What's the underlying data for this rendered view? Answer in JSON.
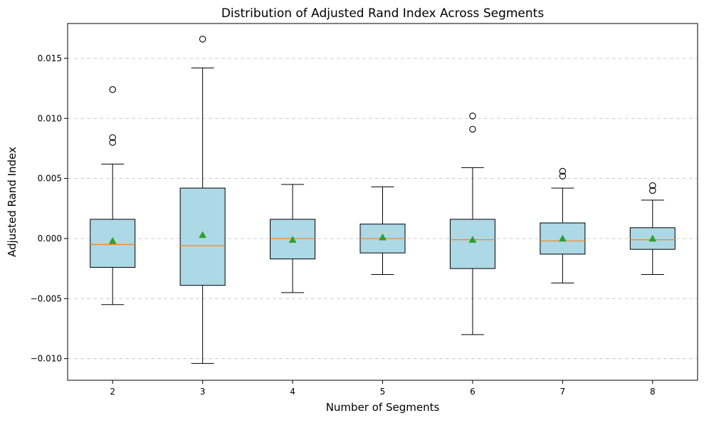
{
  "chart_data": {
    "type": "box",
    "title": "Distribution of Adjusted Rand Index Across Segments",
    "xlabel": "Number of Segments",
    "ylabel": "Adjusted Rand Index",
    "ylim": [
      -0.0118,
      0.0179
    ],
    "yticks": [
      -0.01,
      -0.005,
      0.0,
      0.005,
      0.01,
      0.015
    ],
    "ytick_labels": [
      "−0.010",
      "−0.005",
      "0.000",
      "0.005",
      "0.010",
      "0.015"
    ],
    "grid": {
      "axis": "y",
      "style": "dashed"
    },
    "colors": {
      "box_fill": "#add8e6",
      "box_edge": "#000000",
      "median": "#ff7f0e",
      "mean_marker": "#2ca02c",
      "grid": "#c8c8c8"
    },
    "categories": [
      "2",
      "3",
      "4",
      "5",
      "6",
      "7",
      "8"
    ],
    "boxes": [
      {
        "category": "2",
        "whisker_low": -0.0055,
        "q1": -0.0024,
        "median": -0.0005,
        "q3": 0.0016,
        "whisker_high": 0.0062,
        "mean": -0.0002,
        "outliers": [
          0.008,
          0.0084,
          0.0124
        ]
      },
      {
        "category": "3",
        "whisker_low": -0.0104,
        "q1": -0.0039,
        "median": -0.0006,
        "q3": 0.0042,
        "whisker_high": 0.0142,
        "mean": 0.0003,
        "outliers": [
          0.0166
        ]
      },
      {
        "category": "4",
        "whisker_low": -0.0045,
        "q1": -0.0017,
        "median": 0.0,
        "q3": 0.0016,
        "whisker_high": 0.0045,
        "mean": -0.0001,
        "outliers": []
      },
      {
        "category": "5",
        "whisker_low": -0.003,
        "q1": -0.0012,
        "median": 0.0,
        "q3": 0.0012,
        "whisker_high": 0.0043,
        "mean": 0.0001,
        "outliers": []
      },
      {
        "category": "6",
        "whisker_low": -0.008,
        "q1": -0.0025,
        "median": -0.0001,
        "q3": 0.0016,
        "whisker_high": 0.0059,
        "mean": -0.0001,
        "outliers": [
          0.0091,
          0.0102
        ]
      },
      {
        "category": "7",
        "whisker_low": -0.0037,
        "q1": -0.0013,
        "median": -0.0002,
        "q3": 0.0013,
        "whisker_high": 0.0042,
        "mean": 0.0,
        "outliers": [
          0.0052,
          0.0056
        ]
      },
      {
        "category": "8",
        "whisker_low": -0.003,
        "q1": -0.0009,
        "median": -0.0001,
        "q3": 0.0009,
        "whisker_high": 0.0032,
        "mean": 0.0,
        "outliers": [
          0.004,
          0.0044
        ]
      }
    ]
  }
}
